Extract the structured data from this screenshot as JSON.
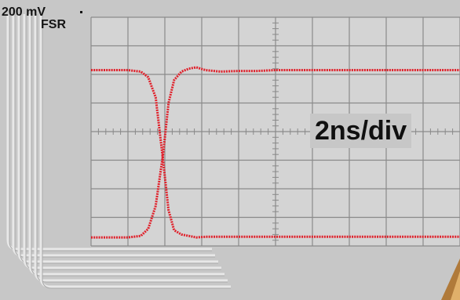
{
  "scale": {
    "value": "200 mV",
    "unit": "FSR"
  },
  "timebase": {
    "label": "2ns/div"
  },
  "chart_data": {
    "type": "line",
    "title": "",
    "xlabel": "",
    "ylabel": "",
    "grid": true,
    "divisions": {
      "x": 10,
      "y": 8
    },
    "xlim": [
      0,
      10
    ],
    "ylim": [
      0,
      8
    ],
    "series": [
      {
        "x": [
          0,
          1.0,
          1.35,
          1.55,
          1.75,
          1.95,
          2.1,
          2.25,
          2.45,
          2.65,
          2.85,
          3.1,
          3.5,
          4.0,
          4.5,
          5.0,
          6.0,
          7.0,
          8.0,
          9.0,
          10.0
        ],
        "y": [
          6.15,
          6.15,
          6.1,
          5.9,
          5.2,
          3.0,
          1.25,
          0.55,
          0.4,
          0.35,
          0.3,
          0.32,
          0.32,
          0.32,
          0.32,
          0.32,
          0.32,
          0.32,
          0.32,
          0.32,
          0.32
        ]
      },
      {
        "x": [
          0,
          1.0,
          1.35,
          1.55,
          1.75,
          1.95,
          2.1,
          2.25,
          2.45,
          2.65,
          2.85,
          3.1,
          3.5,
          4.0,
          4.5,
          5.0,
          6.0,
          7.0,
          8.0,
          9.0,
          10.0
        ],
        "y": [
          0.3,
          0.3,
          0.35,
          0.6,
          1.4,
          3.2,
          5.0,
          5.8,
          6.1,
          6.2,
          6.25,
          6.15,
          6.1,
          6.12,
          6.12,
          6.15,
          6.15,
          6.15,
          6.15,
          6.15,
          6.15
        ]
      }
    ],
    "line_color": "#e0202a",
    "scale_label": "200 mV FSR",
    "timebase_label": "2ns/div"
  }
}
